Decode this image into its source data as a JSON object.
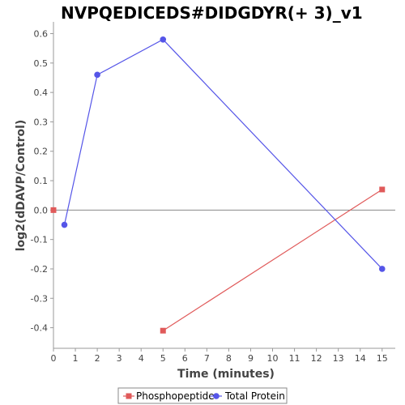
{
  "chart_data": {
    "type": "line",
    "title": "NVPQEDICEDS#DIDGDYR(+ 3)_v1",
    "xlabel": "Time (minutes)",
    "ylabel": "log2(dDAVP/Control)",
    "xlim": [
      0,
      15.6
    ],
    "ylim": [
      -0.47,
      0.64
    ],
    "x_ticks": [
      0,
      1,
      2,
      3,
      4,
      5,
      6,
      7,
      8,
      9,
      10,
      11,
      12,
      13,
      14,
      15
    ],
    "y_ticks": [
      -0.4,
      -0.3,
      -0.2,
      -0.1,
      0.0,
      0.1,
      0.2,
      0.3,
      0.4,
      0.5,
      0.6
    ],
    "x_tick_labels": [
      "0",
      "1",
      "2",
      "3",
      "4",
      "5",
      "6",
      "7",
      "8",
      "9",
      "10",
      "11",
      "12",
      "13",
      "14",
      "15"
    ],
    "y_tick_labels": [
      "-0.4",
      "-0.3",
      "-0.2",
      "-0.1",
      "0.0",
      "0.1",
      "0.2",
      "0.3",
      "0.4",
      "0.5",
      "0.6"
    ],
    "zero_line": true,
    "grid": false,
    "legend_position": "bottom",
    "series": [
      {
        "name": "Phosphopeptide",
        "color": "#e05a5a",
        "marker": "square",
        "points": [
          [
            0,
            0.0
          ]
        ],
        "line_points": [
          [
            5,
            -0.41
          ],
          [
            15,
            0.07
          ]
        ]
      },
      {
        "name": "Total Protein",
        "color": "#5555e8",
        "marker": "circle",
        "points": [
          [
            0.5,
            -0.05
          ],
          [
            2,
            0.46
          ],
          [
            5,
            0.58
          ],
          [
            15,
            -0.2
          ]
        ],
        "line_points": [
          [
            0.5,
            -0.05
          ],
          [
            2,
            0.46
          ],
          [
            5,
            0.58
          ],
          [
            15,
            -0.2
          ]
        ]
      }
    ]
  }
}
